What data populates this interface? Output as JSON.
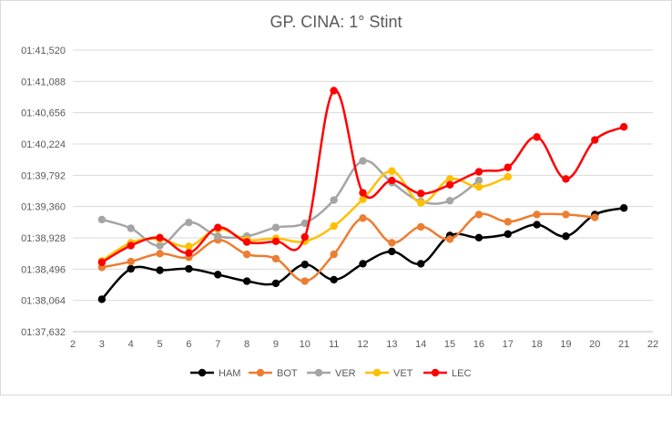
{
  "chart_data": {
    "type": "line",
    "title": "GP. CINA: 1° Stint",
    "xlabel": "",
    "ylabel": "",
    "xlim": [
      2,
      22
    ],
    "x_ticks": [
      "2",
      "3",
      "4",
      "5",
      "6",
      "7",
      "8",
      "9",
      "10",
      "11",
      "12",
      "13",
      "14",
      "15",
      "16",
      "17",
      "18",
      "19",
      "20",
      "21",
      "22"
    ],
    "ylim": [
      97.632,
      101.52
    ],
    "y_ticks": [
      {
        "value": 97.632,
        "label": "01:37,632"
      },
      {
        "value": 98.064,
        "label": "01:38,064"
      },
      {
        "value": 98.496,
        "label": "01:38,496"
      },
      {
        "value": 98.928,
        "label": "01:38,928"
      },
      {
        "value": 99.36,
        "label": "01:39,360"
      },
      {
        "value": 99.792,
        "label": "01:39,792"
      },
      {
        "value": 100.224,
        "label": "01:40,224"
      },
      {
        "value": 100.656,
        "label": "01:40,656"
      },
      {
        "value": 101.088,
        "label": "01:41,088"
      },
      {
        "value": 101.52,
        "label": "01:41,520"
      }
    ],
    "grid": true,
    "legend_position": "bottom",
    "series": [
      {
        "name": "HAM",
        "color": "#000000",
        "x": [
          3,
          4,
          5,
          6,
          7,
          8,
          9,
          10,
          11,
          12,
          13,
          14,
          15,
          16,
          17,
          18,
          19,
          20,
          21
        ],
        "values": [
          98.08,
          98.5,
          98.48,
          98.5,
          98.42,
          98.33,
          98.3,
          98.56,
          98.35,
          98.57,
          98.74,
          98.57,
          98.96,
          98.93,
          98.98,
          99.11,
          98.95,
          99.25,
          99.34
        ]
      },
      {
        "name": "BOT",
        "color": "#ED7D31",
        "x": [
          3,
          4,
          5,
          6,
          7,
          8,
          9,
          10,
          11,
          12,
          13,
          14,
          15,
          16,
          17,
          18,
          19,
          20
        ],
        "values": [
          98.52,
          98.6,
          98.71,
          98.66,
          98.9,
          98.7,
          98.64,
          98.33,
          98.7,
          99.2,
          98.86,
          99.08,
          98.91,
          99.25,
          99.15,
          99.25,
          99.25,
          99.21
        ]
      },
      {
        "name": "VER",
        "color": "#A5A5A5",
        "x": [
          3,
          4,
          5,
          6,
          7,
          8,
          9,
          10,
          11,
          12,
          13,
          14,
          15,
          16
        ],
        "values": [
          99.18,
          99.06,
          98.82,
          99.14,
          98.95,
          98.95,
          99.07,
          99.13,
          99.45,
          99.99,
          99.69,
          99.43,
          99.44,
          99.72
        ]
      },
      {
        "name": "VET",
        "color": "#FFC000",
        "x": [
          3,
          4,
          5,
          6,
          7,
          8,
          9,
          10,
          11,
          12,
          13,
          14,
          15,
          16,
          17
        ],
        "values": [
          98.61,
          98.86,
          98.91,
          98.81,
          99.05,
          98.9,
          98.92,
          98.88,
          99.09,
          99.46,
          99.85,
          99.41,
          99.74,
          99.63,
          99.77
        ]
      },
      {
        "name": "LEC",
        "color": "#FF0000",
        "x": [
          3,
          4,
          5,
          6,
          7,
          8,
          9,
          10,
          11,
          12,
          13,
          14,
          15,
          16,
          17,
          18,
          19,
          20,
          21
        ],
        "values": [
          98.59,
          98.82,
          98.93,
          98.72,
          99.07,
          98.87,
          98.88,
          98.94,
          100.96,
          99.55,
          99.72,
          99.54,
          99.66,
          99.84,
          99.9,
          100.32,
          99.74,
          100.28,
          100.46
        ]
      }
    ]
  }
}
